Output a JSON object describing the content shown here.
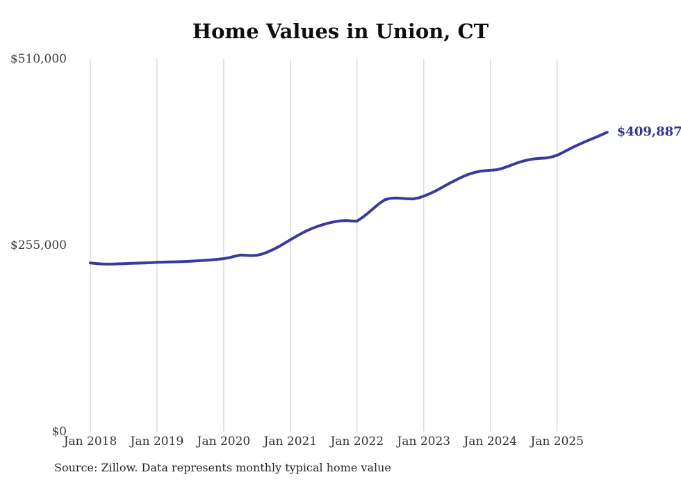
{
  "title": "Home Values in Union, CT",
  "source_note": "Source: Zillow. Data represents monthly typical home value",
  "colors": {
    "line": "#3a3a9d",
    "grid": "#c9c9c9",
    "end_label": "#33338e",
    "title": "#0d0d0d",
    "tick": "#3d3d3d"
  },
  "chart_data": {
    "type": "line",
    "title": "Home Values in Union, CT",
    "xlabel": "",
    "ylabel": "",
    "ylim": [
      0,
      510000
    ],
    "grid": "vertical-yearly",
    "legend": false,
    "end_label": "$409,887",
    "end_value": 409887,
    "y_ticks": [
      {
        "label": "$0",
        "value": 0
      },
      {
        "label": "$255,000",
        "value": 255000
      },
      {
        "label": "$510,000",
        "value": 510000
      }
    ],
    "x_tick_labels": [
      "Jan 2018",
      "Jan 2019",
      "Jan 2020",
      "Jan 2021",
      "Jan 2022",
      "Jan 2023",
      "Jan 2024",
      "Jan 2025"
    ],
    "x_start": "2018-01",
    "x_interval": "monthly",
    "x_months": [
      "2018-01",
      "2018-02",
      "2018-03",
      "2018-04",
      "2018-05",
      "2018-06",
      "2018-07",
      "2018-08",
      "2018-09",
      "2018-10",
      "2018-11",
      "2018-12",
      "2019-01",
      "2019-02",
      "2019-03",
      "2019-04",
      "2019-05",
      "2019-06",
      "2019-07",
      "2019-08",
      "2019-09",
      "2019-10",
      "2019-11",
      "2019-12",
      "2020-01",
      "2020-02",
      "2020-03",
      "2020-04",
      "2020-05",
      "2020-06",
      "2020-07",
      "2020-08",
      "2020-09",
      "2020-10",
      "2020-11",
      "2020-12",
      "2021-01",
      "2021-02",
      "2021-03",
      "2021-04",
      "2021-05",
      "2021-06",
      "2021-07",
      "2021-08",
      "2021-09",
      "2021-10",
      "2021-11",
      "2021-12",
      "2022-01",
      "2022-02",
      "2022-03",
      "2022-04",
      "2022-05",
      "2022-06",
      "2022-07",
      "2022-08",
      "2022-09",
      "2022-10",
      "2022-11",
      "2022-12",
      "2023-01",
      "2023-02",
      "2023-03",
      "2023-04",
      "2023-05",
      "2023-06",
      "2023-07",
      "2023-08",
      "2023-09",
      "2023-10",
      "2023-11",
      "2023-12",
      "2024-01",
      "2024-02",
      "2024-03",
      "2024-04",
      "2024-05",
      "2024-06",
      "2024-07",
      "2024-08",
      "2024-09",
      "2024-10",
      "2024-11",
      "2024-12",
      "2025-01",
      "2025-02",
      "2025-03",
      "2025-04",
      "2025-05",
      "2025-06",
      "2025-07",
      "2025-08",
      "2025-09",
      "2025-10"
    ],
    "series": [
      {
        "name": "Typical home value",
        "values": [
          231000,
          230300,
          229700,
          229400,
          229500,
          229800,
          230100,
          230400,
          230600,
          230800,
          231100,
          231500,
          231900,
          232200,
          232400,
          232500,
          232700,
          233000,
          233400,
          233800,
          234300,
          234800,
          235400,
          236100,
          236900,
          238300,
          240200,
          241900,
          241400,
          241100,
          241600,
          243400,
          246300,
          249800,
          253800,
          258200,
          262800,
          267300,
          271500,
          275300,
          278600,
          281400,
          283800,
          285900,
          287500,
          288700,
          289200,
          288500,
          288300,
          293500,
          299500,
          306000,
          312500,
          317500,
          319500,
          320000,
          319500,
          318800,
          318700,
          320000,
          322500,
          325600,
          329100,
          333100,
          337400,
          341500,
          345400,
          349000,
          352100,
          354600,
          356300,
          357300,
          357900,
          358400,
          360100,
          362800,
          365700,
          368400,
          370700,
          372400,
          373600,
          374100,
          374600,
          376100,
          378400,
          382100,
          386100,
          389900,
          393500,
          396900,
          400100,
          403100,
          406500,
          409887
        ]
      }
    ]
  }
}
